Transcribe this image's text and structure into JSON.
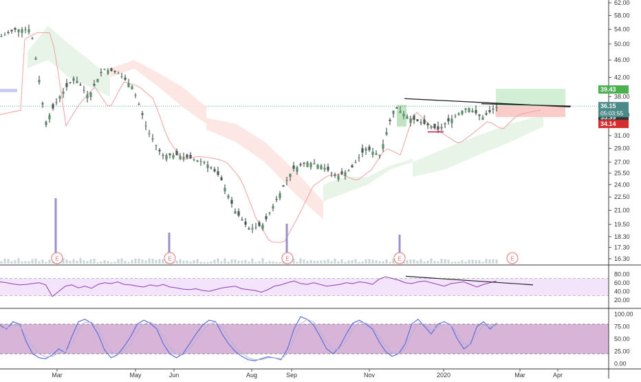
{
  "colors": {
    "up": "#26a69a",
    "down": "#ef5350",
    "candle_body": "#4a5a52",
    "price_line": "#5fb0a8",
    "volume": "#c8d4d8",
    "volume_spike": "#9b8fc8",
    "rsi_line": "#8e3bb5",
    "rsi_band": "#f3e4fb",
    "stoch_k": "#5b6fd8",
    "stoch_d": "#b5b0d8",
    "stoch_band": "#d8b4d8",
    "cloud_bull": "#e3f2e3",
    "cloud_bear": "#fde3e0",
    "kijun": "#f0a0a0",
    "badge_green": "#4caf50",
    "badge_red": "#d32f2f",
    "badge_teal": "#4c8a8a",
    "badge_dark": "#333333"
  },
  "chart_data": [
    {
      "type": "candlestick",
      "panel": "price",
      "ylim": [
        16.3,
        62.0
      ],
      "scale": "log",
      "y_ticks": [
        "62.00",
        "58.00",
        "54.00",
        "50.00",
        "46.00",
        "42.00",
        "38.00",
        "34.50",
        "31.00",
        "29.00",
        "27.00",
        "25.50",
        "24.00",
        "22.50",
        "21.00",
        "19.50",
        "18.30",
        "17.30",
        "16.30"
      ],
      "x_ticks": [
        "Mar",
        "May",
        "Jun",
        "Aug",
        "Sep",
        "Nov",
        "2020",
        "Mar",
        "Apr"
      ],
      "close_path": [
        [
          "Feb",
          52
        ],
        [
          "Feb",
          54
        ],
        [
          "Mar",
          54
        ],
        [
          "Mar",
          33
        ],
        [
          "Apr",
          38
        ],
        [
          "Apr",
          42
        ],
        [
          "Apr",
          38
        ],
        [
          "May",
          44
        ],
        [
          "May",
          43
        ],
        [
          "May",
          40
        ],
        [
          "Jun",
          32
        ],
        [
          "Jun",
          28
        ],
        [
          "Jun",
          28
        ],
        [
          "Jul",
          27.5
        ],
        [
          "Jul",
          27
        ],
        [
          "Jul",
          25
        ],
        [
          "Aug",
          21
        ],
        [
          "Aug",
          19
        ],
        [
          "Aug",
          19.5
        ],
        [
          "Sep",
          22.5
        ],
        [
          "Sep",
          26
        ],
        [
          "Sep",
          27
        ],
        [
          "Oct",
          26.5
        ],
        [
          "Oct",
          25
        ],
        [
          "Oct",
          26
        ],
        [
          "Nov",
          29
        ],
        [
          "Nov",
          28
        ],
        [
          "Nov",
          36
        ],
        [
          "Dec",
          34
        ],
        [
          "Dec",
          33
        ],
        [
          "Dec",
          32
        ],
        [
          "Jan",
          34
        ],
        [
          "Jan",
          36
        ],
        [
          "Jan",
          34
        ],
        [
          "Feb",
          35.99
        ]
      ],
      "earnings_markers": [
        "E",
        "E",
        "E",
        "E",
        "E"
      ],
      "badges": {
        "target": "39.43",
        "last": "36.15",
        "countdown": "05:03:55",
        "current": "35.99",
        "stop": "34.14"
      },
      "volume_spikes_x": [
        "Mar",
        "Jun",
        "Sep",
        "Nov"
      ]
    },
    {
      "type": "line",
      "panel": "rsi",
      "ylim": [
        10,
        90
      ],
      "y_ticks": [
        "80.00",
        "60.00",
        "40.00",
        "20.00"
      ],
      "band": [
        30,
        70
      ],
      "series": [
        {
          "values": [
            62,
            60,
            57,
            55,
            56,
            58,
            60,
            55,
            28,
            40,
            52,
            55,
            48,
            52,
            47,
            56,
            60,
            58,
            62,
            56,
            55,
            52,
            50,
            55,
            52,
            56,
            50,
            48,
            45,
            44,
            46,
            42,
            40,
            44,
            48,
            50,
            52,
            46,
            44,
            42,
            38,
            44,
            52,
            55,
            60,
            64,
            58,
            56,
            60,
            56,
            52,
            54,
            56,
            60,
            58,
            62,
            60,
            56,
            68,
            74,
            70,
            66,
            60,
            58,
            62,
            64,
            60,
            56,
            52,
            58,
            60,
            62,
            56,
            50,
            56,
            60,
            64
          ]
        }
      ]
    },
    {
      "type": "line",
      "panel": "stoch",
      "ylim": [
        -5,
        105
      ],
      "y_ticks": [
        "100.00",
        "75.00",
        "50.00",
        "25.00",
        "0.00"
      ],
      "band": [
        20,
        80
      ],
      "series": [
        {
          "values": [
            78,
            70,
            85,
            80,
            45,
            20,
            12,
            10,
            18,
            30,
            22,
            55,
            85,
            90,
            82,
            60,
            28,
            12,
            18,
            35,
            55,
            80,
            88,
            82,
            70,
            40,
            20,
            12,
            20,
            40,
            60,
            78,
            88,
            85,
            60,
            40,
            25,
            15,
            8,
            6,
            10,
            14,
            12,
            8,
            30,
            70,
            95,
            90,
            78,
            55,
            30,
            20,
            35,
            60,
            82,
            88,
            80,
            70,
            45,
            25,
            15,
            20,
            40,
            80,
            90,
            75,
            60,
            80,
            85,
            78,
            50,
            30,
            40,
            75,
            85,
            70,
            82
          ]
        },
        {
          "values": [
            72,
            72,
            78,
            76,
            58,
            35,
            20,
            14,
            15,
            22,
            24,
            40,
            68,
            84,
            84,
            72,
            45,
            24,
            18,
            26,
            40,
            65,
            80,
            84,
            76,
            56,
            32,
            18,
            18,
            30,
            48,
            66,
            80,
            84,
            72,
            52,
            34,
            22,
            12,
            8,
            8,
            12,
            12,
            10,
            20,
            48,
            80,
            90,
            84,
            66,
            44,
            28,
            30,
            46,
            70,
            84,
            82,
            74,
            56,
            36,
            22,
            20,
            30,
            60,
            82,
            80,
            68,
            74,
            80,
            78,
            62,
            40,
            38,
            60,
            78,
            74,
            78
          ]
        }
      ]
    }
  ]
}
